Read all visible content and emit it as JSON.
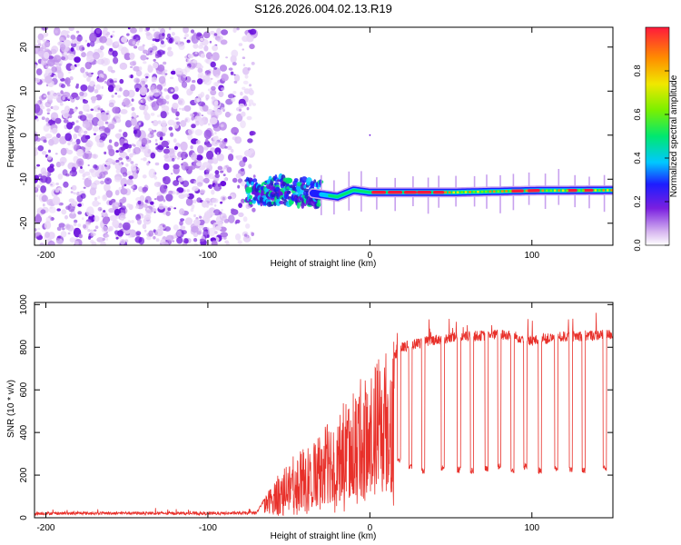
{
  "title": "S126.2026.004.02.13.R19",
  "chart_data": [
    {
      "type": "heatmap",
      "name": "spectrogram",
      "title": "S126.2026.004.02.13.R19",
      "xlabel": "Height of straight line (km)",
      "ylabel": "Frequency (Hz)",
      "xlim": [
        -207,
        150
      ],
      "ylim": [
        -25,
        24.5
      ],
      "xticks": [
        -200,
        -100,
        0,
        100
      ],
      "yticks": [
        20,
        10,
        0,
        -10,
        -20
      ],
      "carrier": {
        "x": [
          -75,
          -65,
          -55,
          -45,
          -35,
          -20,
          -10,
          0,
          20,
          50,
          100,
          150
        ],
        "freq": [
          -12.5,
          -12.8,
          -12.5,
          -13.0,
          -13.2,
          -14.0,
          -12.5,
          -13.0,
          -13.0,
          -13.0,
          -12.6,
          -12.5
        ]
      },
      "noise_region_x": [
        -207,
        -75
      ],
      "colorbar": {
        "label": "Normalized spectral amplitude",
        "range": [
          0.0,
          1.0
        ],
        "ticks": [
          "0.0",
          "0.2",
          "0.4",
          "0.6",
          "0.8"
        ]
      }
    },
    {
      "type": "line",
      "name": "snr",
      "xlabel": "Height of straight line (km)",
      "ylabel": "SNR (10 * v/v)",
      "xlim": [
        -207,
        150
      ],
      "ylim": [
        0,
        1010
      ],
      "xticks": [
        -200,
        -100,
        0,
        100
      ],
      "yticks": [
        0,
        200,
        400,
        600,
        800,
        1000
      ],
      "series": [
        {
          "name": "SNR",
          "color": "#e8302a",
          "x": [
            -207,
            -150,
            -100,
            -70,
            -60,
            -50,
            -40,
            -30,
            -20,
            -10,
            0,
            10,
            20,
            30,
            40,
            60,
            80,
            90,
            100,
            120,
            150
          ],
          "y": [
            20,
            22,
            20,
            22,
            150,
            250,
            300,
            380,
            470,
            560,
            640,
            720,
            800,
            820,
            835,
            850,
            860,
            850,
            830,
            850,
            860
          ],
          "dropouts_x": [
            18,
            25,
            33,
            45,
            55,
            63,
            72,
            80,
            88,
            96,
            105,
            115,
            124,
            132,
            145
          ],
          "dropout_level": [
            270,
            240,
            220,
            230,
            225,
            220,
            230,
            240,
            220,
            240,
            220,
            230,
            230,
            220,
            230
          ]
        }
      ]
    }
  ]
}
